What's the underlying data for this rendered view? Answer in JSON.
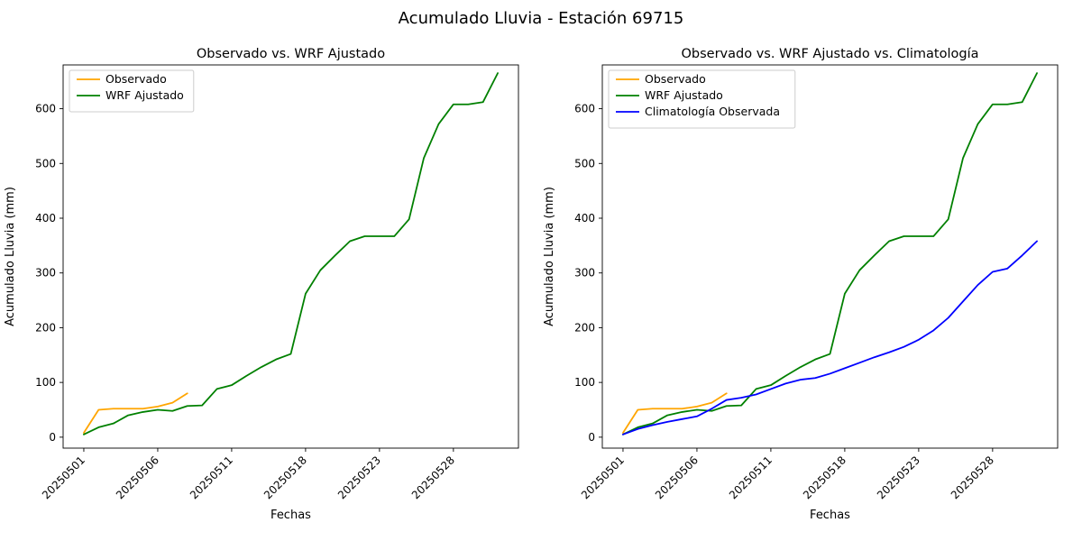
{
  "figure": {
    "suptitle": "Acumulado Lluvia - Estación 69715"
  },
  "chart_data": [
    {
      "type": "line",
      "title": "Observado vs. WRF Ajustado",
      "xlabel": "Fechas",
      "ylabel": "Acumulado Lluvia (mm)",
      "x_tick_positions": [
        0,
        5,
        10,
        15,
        20,
        25
      ],
      "x_tick_labels": [
        "20250501",
        "20250506",
        "20250511",
        "20250518",
        "20250523",
        "20250528"
      ],
      "y_ticks": [
        0,
        100,
        200,
        300,
        400,
        500,
        600
      ],
      "xlim": [
        -1.4,
        29.4
      ],
      "ylim": [
        -20,
        680
      ],
      "grid": false,
      "legend_position": "upper left",
      "series": [
        {
          "name": "observado",
          "label": "Observado",
          "color": "#ffa500",
          "x": [
            0,
            1,
            2,
            3,
            4,
            5,
            6,
            7
          ],
          "values": [
            8,
            50,
            52,
            52,
            52,
            56,
            63,
            80
          ]
        },
        {
          "name": "wrf-ajustado",
          "label": "WRF Ajustado",
          "color": "#008000",
          "x": [
            0,
            1,
            2,
            3,
            4,
            5,
            6,
            7,
            8,
            9,
            10,
            11,
            12,
            13,
            14,
            15,
            16,
            17,
            18,
            19,
            20,
            21,
            22,
            23,
            24,
            25,
            26,
            27,
            28
          ],
          "values": [
            5,
            18,
            25,
            40,
            46,
            50,
            48,
            57,
            58,
            88,
            95,
            112,
            128,
            142,
            152,
            262,
            305,
            332,
            358,
            367,
            367,
            367,
            398,
            510,
            572,
            608,
            608,
            612,
            665
          ]
        }
      ]
    },
    {
      "type": "line",
      "title": "Observado vs. WRF Ajustado vs. Climatología",
      "xlabel": "Fechas",
      "ylabel": "Acumulado Lluvia (mm)",
      "x_tick_positions": [
        0,
        5,
        10,
        15,
        20,
        25
      ],
      "x_tick_labels": [
        "20250501",
        "20250506",
        "20250511",
        "20250518",
        "20250523",
        "20250528"
      ],
      "y_ticks": [
        0,
        100,
        200,
        300,
        400,
        500,
        600
      ],
      "xlim": [
        -1.4,
        29.4
      ],
      "ylim": [
        -20,
        680
      ],
      "grid": false,
      "legend_position": "upper left",
      "series": [
        {
          "name": "observado",
          "label": "Observado",
          "color": "#ffa500",
          "x": [
            0,
            1,
            2,
            3,
            4,
            5,
            6,
            7
          ],
          "values": [
            8,
            50,
            52,
            52,
            52,
            56,
            63,
            80
          ]
        },
        {
          "name": "wrf-ajustado",
          "label": "WRF Ajustado",
          "color": "#008000",
          "x": [
            0,
            1,
            2,
            3,
            4,
            5,
            6,
            7,
            8,
            9,
            10,
            11,
            12,
            13,
            14,
            15,
            16,
            17,
            18,
            19,
            20,
            21,
            22,
            23,
            24,
            25,
            26,
            27,
            28
          ],
          "values": [
            5,
            18,
            25,
            40,
            46,
            50,
            48,
            57,
            58,
            88,
            95,
            112,
            128,
            142,
            152,
            262,
            305,
            332,
            358,
            367,
            367,
            367,
            398,
            510,
            572,
            608,
            608,
            612,
            665
          ]
        },
        {
          "name": "climatologia-observada",
          "label": "Climatología Observada",
          "color": "#0000ff",
          "x": [
            0,
            1,
            2,
            3,
            4,
            5,
            6,
            7,
            8,
            9,
            10,
            11,
            12,
            13,
            14,
            15,
            16,
            17,
            18,
            19,
            20,
            21,
            22,
            23,
            24,
            25,
            26,
            27,
            28
          ],
          "values": [
            5,
            15,
            22,
            28,
            33,
            38,
            52,
            68,
            72,
            78,
            88,
            98,
            105,
            108,
            116,
            126,
            136,
            146,
            155,
            165,
            178,
            195,
            218,
            248,
            278,
            302,
            308,
            332,
            358
          ]
        }
      ]
    }
  ]
}
